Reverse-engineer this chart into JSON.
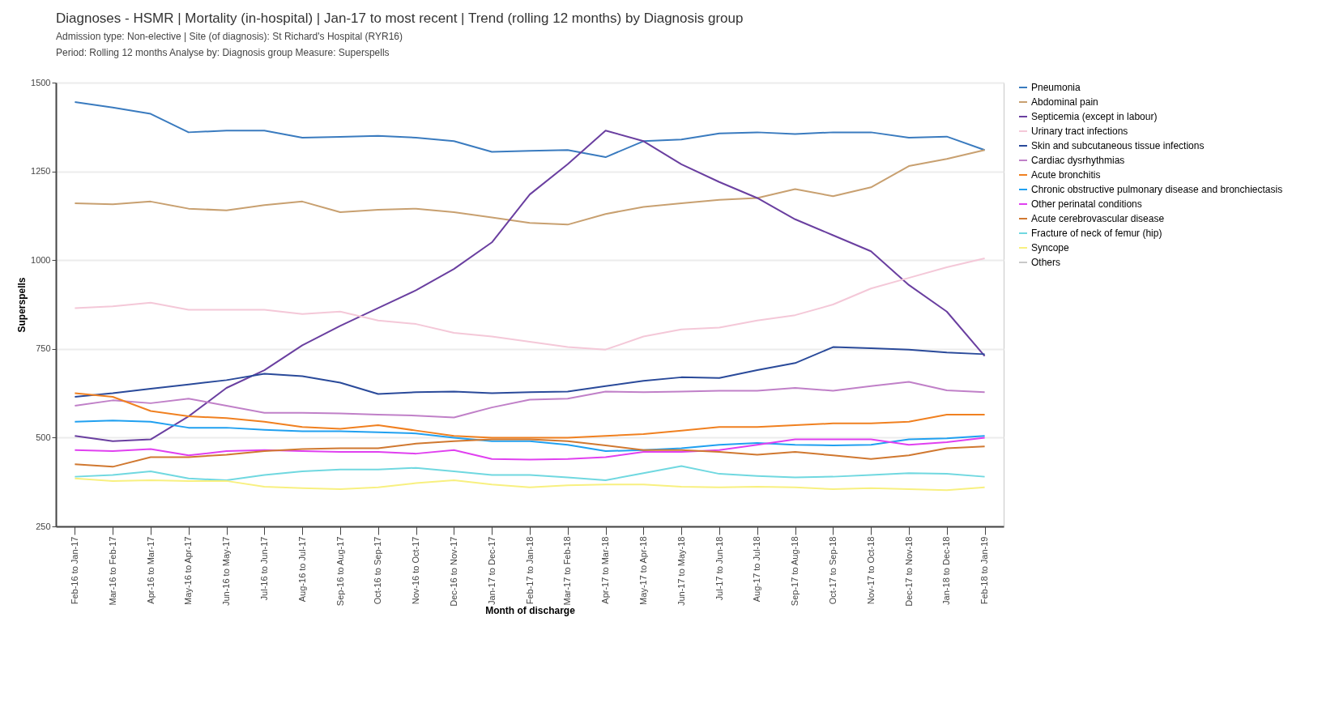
{
  "chart_data": {
    "type": "line",
    "title": "Diagnoses - HSMR | Mortality (in-hospital) | Jan-17 to most recent | Trend (rolling 12 months) by Diagnosis group",
    "subtitle": "Admission type: Non-elective | Site (of diagnosis): St Richard's Hospital (RYR16)",
    "annotations": [
      "Period: Rolling 12 months   Analyse by: Diagnosis group   Measure: Superspells"
    ],
    "xlabel": "Month of discharge",
    "ylabel": "Superspells",
    "categories": [
      "Feb-16 to Jan-17",
      "Mar-16 to Feb-17",
      "Apr-16 to Mar-17",
      "May-16 to Apr-17",
      "Jun-16 to May-17",
      "Jul-16 to Jun-17",
      "Aug-16 to Jul-17",
      "Sep-16 to Aug-17",
      "Oct-16 to Sep-17",
      "Nov-16 to Oct-17",
      "Dec-16 to Nov-17",
      "Jan-17 to Dec-17",
      "Feb-17 to Jan-18",
      "Mar-17 to Feb-18",
      "Apr-17 to Mar-18",
      "May-17 to Apr-18",
      "Jun-17 to May-18",
      "Jul-17 to Jun-18",
      "Aug-17 to Jul-18",
      "Sep-17 to Aug-18",
      "Oct-17 to Sep-18",
      "Nov-17 to Oct-18",
      "Dec-17 to Nov-18",
      "Jan-18 to Dec-18",
      "Feb-18 to Jan-19"
    ],
    "series": [
      {
        "name": "Pneumonia",
        "color": "#3a7bbf",
        "values": [
          1445,
          1430,
          1412,
          1360,
          1365,
          1365,
          1345,
          1347,
          1350,
          1345,
          1335,
          1305,
          1308,
          1310,
          1290,
          1335,
          1340,
          1357,
          1360,
          1355,
          1360,
          1360,
          1345,
          1348,
          1310
        ]
      },
      {
        "name": "Abdominal pain",
        "color": "#c8a070",
        "values": [
          1160,
          1157,
          1165,
          1145,
          1140,
          1155,
          1165,
          1135,
          1142,
          1145,
          1135,
          1120,
          1105,
          1100,
          1130,
          1150,
          1160,
          1170,
          1175,
          1200,
          1180,
          1205,
          1265,
          1285,
          1310
        ]
      },
      {
        "name": "Septicemia (except in labour)",
        "color": "#6a3fa0",
        "values": [
          505,
          490,
          495,
          560,
          640,
          690,
          760,
          815,
          865,
          915,
          975,
          1050,
          1185,
          1270,
          1365,
          1335,
          1270,
          1220,
          1175,
          1115,
          1070,
          1025,
          930,
          855,
          730
        ]
      },
      {
        "name": "Urinary tract infections",
        "color": "#f4c8d8",
        "values": [
          865,
          870,
          880,
          860,
          860,
          860,
          848,
          855,
          830,
          820,
          795,
          785,
          770,
          755,
          748,
          785,
          805,
          810,
          830,
          845,
          875,
          920,
          950,
          980,
          1005
        ]
      },
      {
        "name": "Skin and subcutaneous tissue infections",
        "color": "#2a4a9a",
        "values": [
          615,
          625,
          638,
          650,
          662,
          680,
          673,
          655,
          623,
          628,
          630,
          625,
          628,
          630,
          645,
          660,
          670,
          668,
          690,
          710,
          755,
          752,
          748,
          740,
          735
        ]
      },
      {
        "name": "Cardiac dysrhythmias",
        "color": "#c080c8",
        "values": [
          590,
          605,
          597,
          610,
          590,
          570,
          570,
          568,
          565,
          562,
          557,
          585,
          607,
          610,
          630,
          628,
          630,
          632,
          632,
          640,
          632,
          645,
          657,
          633,
          628
        ]
      },
      {
        "name": "Acute bronchitis",
        "color": "#f08020",
        "values": [
          625,
          615,
          575,
          560,
          555,
          545,
          530,
          525,
          535,
          520,
          505,
          500,
          500,
          500,
          505,
          510,
          520,
          530,
          530,
          535,
          540,
          540,
          545,
          565,
          565
        ]
      },
      {
        "name": "Chronic obstructive pulmonary disease and bronchiectasis",
        "color": "#20a0f0",
        "values": [
          545,
          548,
          545,
          528,
          528,
          522,
          518,
          518,
          515,
          512,
          500,
          490,
          490,
          480,
          462,
          465,
          470,
          480,
          485,
          480,
          478,
          480,
          495,
          498,
          505
        ]
      },
      {
        "name": "Other perinatal conditions",
        "color": "#e040f0",
        "values": [
          465,
          462,
          468,
          450,
          462,
          465,
          462,
          460,
          460,
          455,
          465,
          440,
          438,
          440,
          445,
          460,
          460,
          465,
          480,
          495,
          495,
          495,
          480,
          487,
          500
        ]
      },
      {
        "name": "Acute cerebrovascular disease",
        "color": "#d07830",
        "values": [
          425,
          418,
          445,
          445,
          452,
          462,
          468,
          470,
          470,
          483,
          490,
          495,
          495,
          490,
          478,
          465,
          465,
          460,
          452,
          460,
          450,
          440,
          450,
          470,
          475
        ]
      },
      {
        "name": "Fracture of neck of femur (hip)",
        "color": "#70d8e0",
        "values": [
          390,
          395,
          405,
          385,
          380,
          395,
          405,
          410,
          410,
          415,
          405,
          395,
          395,
          388,
          380,
          400,
          420,
          398,
          392,
          388,
          390,
          395,
          400,
          398,
          390
        ]
      },
      {
        "name": "Syncope",
        "color": "#f8f080",
        "values": [
          385,
          378,
          380,
          378,
          378,
          362,
          358,
          355,
          360,
          372,
          380,
          368,
          360,
          366,
          368,
          368,
          362,
          360,
          362,
          360,
          355,
          358,
          355,
          352,
          360
        ]
      },
      {
        "name": "Others",
        "color": "#c8c8c8",
        "values": [
          null,
          null,
          null,
          null,
          null,
          null,
          null,
          null,
          null,
          null,
          null,
          null,
          null,
          null,
          null,
          null,
          null,
          null,
          null,
          null,
          null,
          null,
          null,
          null,
          null
        ]
      }
    ],
    "ylim": [
      250,
      1500
    ],
    "yticks": [
      250,
      500,
      750,
      1000,
      1250,
      1500
    ],
    "grid": "y",
    "legend": "right"
  }
}
